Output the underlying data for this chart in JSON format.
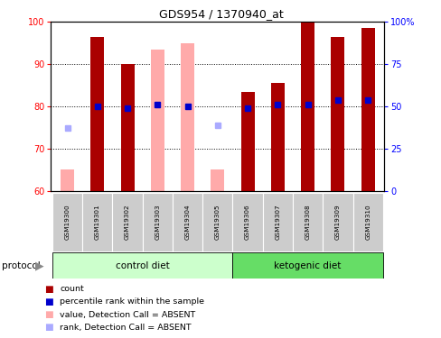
{
  "title": "GDS954 / 1370940_at",
  "samples": [
    "GSM19300",
    "GSM19301",
    "GSM19302",
    "GSM19303",
    "GSM19304",
    "GSM19305",
    "GSM19306",
    "GSM19307",
    "GSM19308",
    "GSM19309",
    "GSM19310"
  ],
  "count_values": [
    null,
    96.5,
    90.0,
    null,
    null,
    null,
    83.5,
    85.5,
    100.0,
    96.5,
    98.5
  ],
  "rank_values": [
    null,
    80.0,
    79.5,
    80.5,
    80.0,
    null,
    79.5,
    80.5,
    80.5,
    81.5,
    81.5
  ],
  "absent_count": [
    65.0,
    null,
    null,
    93.5,
    95.0,
    65.0,
    null,
    null,
    null,
    null,
    null
  ],
  "absent_rank": [
    75.0,
    null,
    null,
    null,
    null,
    75.5,
    null,
    null,
    null,
    null,
    null
  ],
  "ylim": [
    60,
    100
  ],
  "y2lim": [
    0,
    100
  ],
  "yticks": [
    60,
    70,
    80,
    90,
    100
  ],
  "y2ticks": [
    0,
    25,
    50,
    75,
    100
  ],
  "y2ticklabels": [
    "0",
    "25",
    "50",
    "75",
    "100%"
  ],
  "bar_width": 0.45,
  "count_color": "#aa0000",
  "rank_color": "#0000cc",
  "absent_count_color": "#ffaaaa",
  "absent_rank_color": "#aaaaff",
  "control_bg": "#ccffcc",
  "ketogenic_bg": "#66dd66",
  "sample_bg": "#cccccc",
  "figsize": [
    4.89,
    3.75
  ],
  "dpi": 100
}
